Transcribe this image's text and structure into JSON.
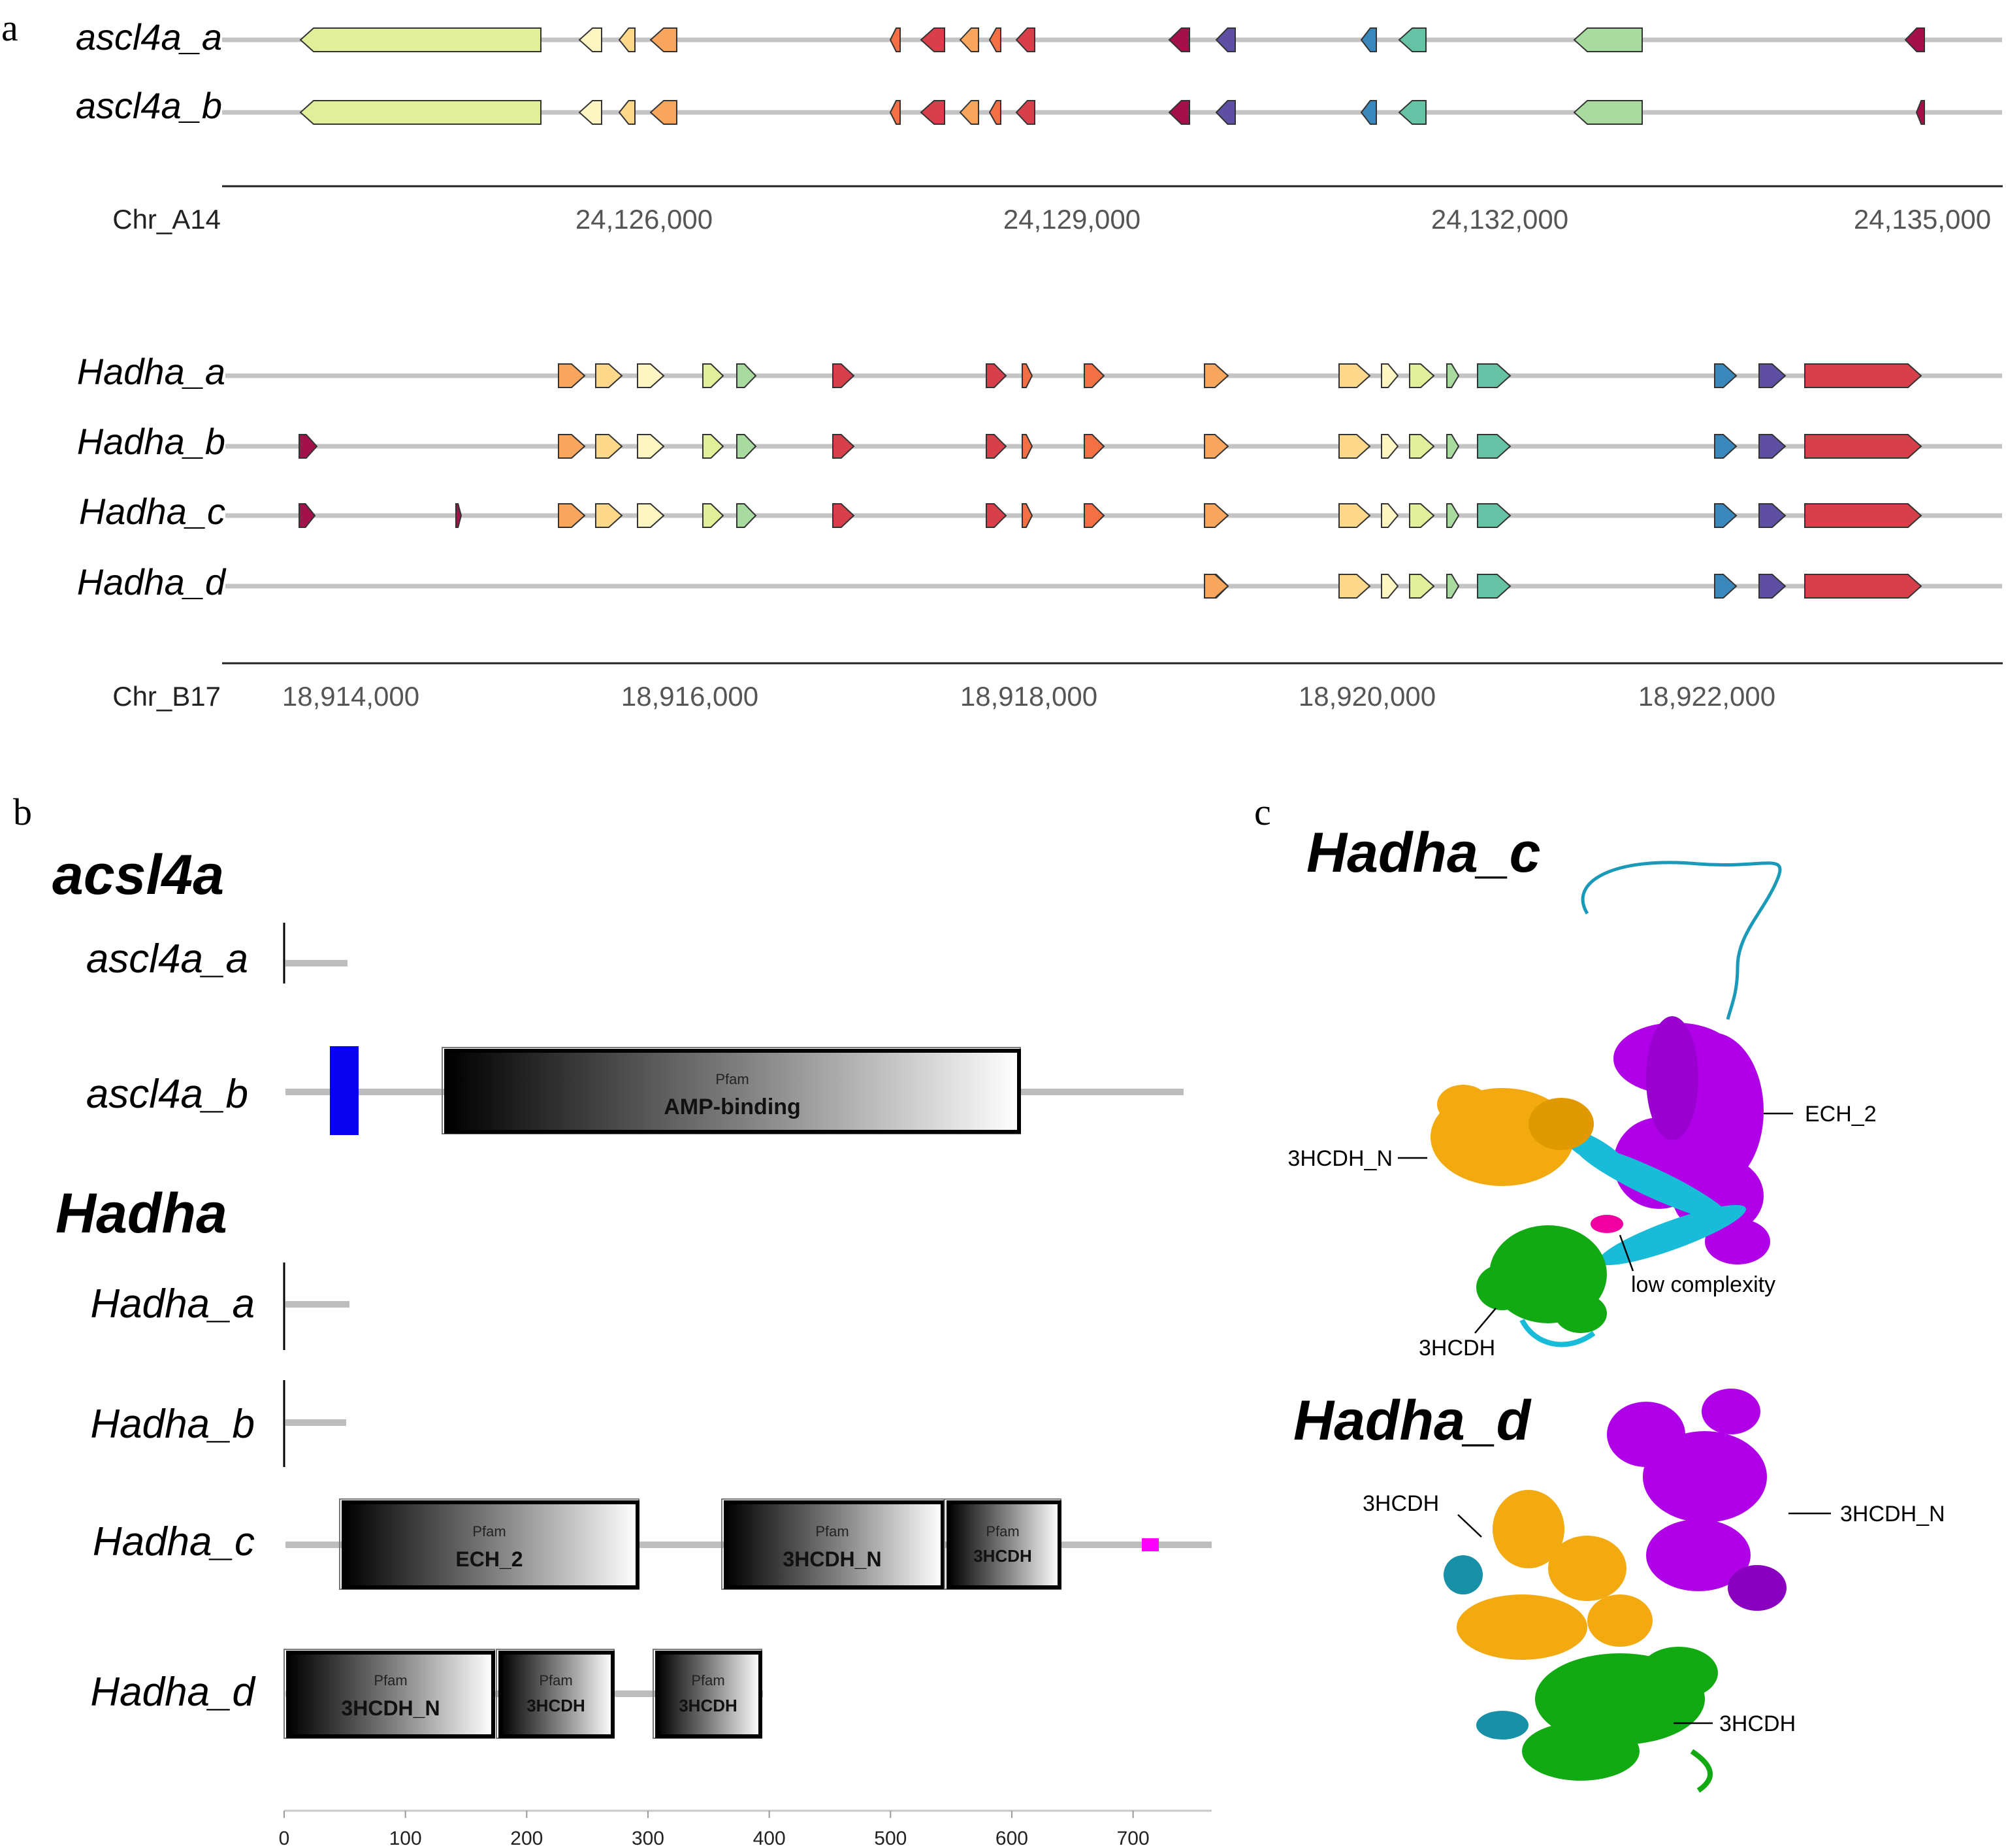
{
  "panel_a": {
    "label": "a",
    "track1": {
      "chromosome": "Chr_A14",
      "genes": [
        "ascl4a_a",
        "ascl4a_b"
      ],
      "ticks": [
        {
          "pos": 24126000,
          "label": "24,126,000"
        },
        {
          "pos": 24129000,
          "label": "24,129,000"
        },
        {
          "pos": 24132000,
          "label": "24,132,000"
        },
        {
          "pos": 24135000,
          "label": "24,135,000"
        }
      ],
      "colors": [
        "#e2ef9a",
        "#fdf5c2",
        "#fdd88a",
        "#f8a55e",
        "#f36f44",
        "#d7404a",
        "#a3104a",
        "#5e4fa2",
        "#3a88bb",
        "#66c2a5",
        "#a9dba0"
      ]
    },
    "track2": {
      "chromosome": "Chr_B17",
      "genes": [
        "Hadha_a",
        "Hadha_b",
        "Hadha_c",
        "Hadha_d"
      ],
      "ticks": [
        {
          "pos": 18914000,
          "label": "18,914,000"
        },
        {
          "pos": 18916000,
          "label": "18,916,000"
        },
        {
          "pos": 18918000,
          "label": "18,918,000"
        },
        {
          "pos": 18920000,
          "label": "18,920,000"
        },
        {
          "pos": 18922000,
          "label": "18,922,000"
        }
      ]
    }
  },
  "panel_b": {
    "label": "b",
    "group1": {
      "title": "acsl4a",
      "rows": [
        "ascl4a_a",
        "ascl4a_b"
      ]
    },
    "group2": {
      "title": "Hadha",
      "rows": [
        "Hadha_a",
        "Hadha_b",
        "Hadha_c",
        "Hadha_d"
      ]
    },
    "domain_source": "Pfam",
    "domains": {
      "amp_binding": "AMP-binding",
      "ech2": "ECH_2",
      "hcdh_n": "3HCDH_N",
      "hcdh": "3HCDH"
    },
    "axis": {
      "ticks": [
        0,
        100,
        200,
        300,
        400,
        500,
        600,
        700
      ]
    },
    "colors": {
      "signal": "#0a00f0",
      "low_complexity": "#ff00ff",
      "backbone": "#bdbdbd"
    }
  },
  "panel_c": {
    "label": "c",
    "structure1": {
      "title": "Hadha_c",
      "labels": {
        "ech2": "ECH_2",
        "hcdh_n": "3HCDH_N",
        "low_complexity": "low complexity",
        "hcdh": "3HCDH"
      }
    },
    "structure2": {
      "title": "Hadha_d",
      "labels": {
        "hcdh_top": "3HCDH",
        "hcdh_n": "3HCDH_N",
        "hcdh_bottom": "3HCDH"
      }
    },
    "colors": {
      "purple": "#b000e8",
      "orange": "#f3aa10",
      "cyan": "#18bcd8",
      "green": "#12aa12",
      "magenta": "#f000a0",
      "teal": "#1890a8"
    }
  }
}
